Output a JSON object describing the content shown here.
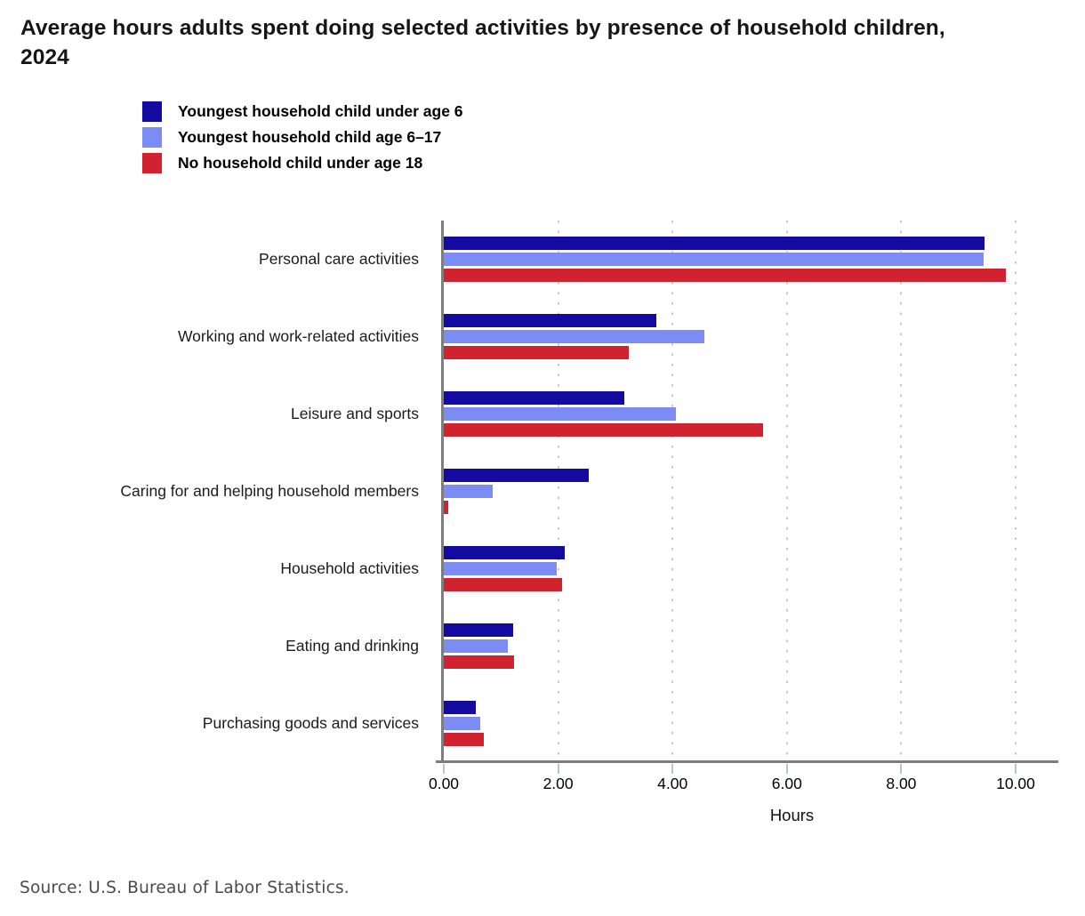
{
  "title": "Average hours adults spent doing selected activities by presence of household children, 2024",
  "source": "Source: U.S. Bureau of Labor Statistics.",
  "chart_data": {
    "type": "bar",
    "orientation": "horizontal",
    "title": "Average hours adults spent doing selected activities by presence of household children, 2024",
    "xlabel": "Hours",
    "ylabel": "",
    "xlim": [
      0,
      10
    ],
    "xticks": [
      "0.00",
      "2.00",
      "4.00",
      "6.00",
      "8.00",
      "10.00"
    ],
    "grid": "vertical-dotted",
    "legend_position": "top-left",
    "categories": [
      "Personal care activities",
      "Working and work-related activities",
      "Leisure and sports",
      "Caring for and helping household members",
      "Household activities",
      "Eating and drinking",
      "Purchasing goods and services"
    ],
    "series": [
      {
        "name": "Youngest household child under age 6",
        "color": "#130aa0",
        "values": [
          9.45,
          3.72,
          3.16,
          2.53,
          2.12,
          1.22,
          0.56
        ]
      },
      {
        "name": "Youngest household child age 6–17",
        "color": "#7b8df5",
        "values": [
          9.44,
          4.55,
          4.06,
          0.85,
          1.97,
          1.12,
          0.63
        ]
      },
      {
        "name": "No household child under age 18",
        "color": "#d0232f",
        "values": [
          9.83,
          3.23,
          5.58,
          0.08,
          2.07,
          1.23,
          0.7
        ]
      }
    ]
  },
  "colors": {
    "axis": "#7d7d7d",
    "tick": "#b7c4d8",
    "gridline": "#c7c7c7",
    "title_text": "#161616",
    "source_text": "#4a4a4a"
  }
}
